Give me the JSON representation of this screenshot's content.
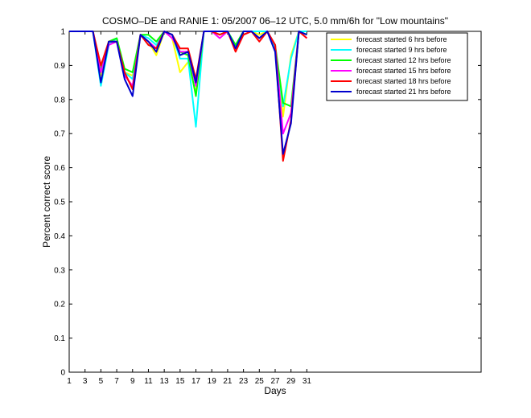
{
  "chart_data": {
    "type": "line",
    "title": "COSMO–DE and RANIE 1: 05/2007 06–12 UTC, 5.0 mm/6h for \"Low mountains\"",
    "xlabel": "Days",
    "ylabel": "Percent correct score",
    "xlim": [
      1,
      53
    ],
    "ylim": [
      0,
      1
    ],
    "xticks": [
      1,
      3,
      5,
      7,
      9,
      11,
      13,
      15,
      17,
      19,
      21,
      23,
      25,
      27,
      29,
      31
    ],
    "yticks": [
      0,
      0.1,
      0.2,
      0.3,
      0.4,
      0.5,
      0.6,
      0.7,
      0.8,
      0.9,
      1
    ],
    "ytick_labels": [
      "0",
      "0.1",
      "0.2",
      "0.3",
      "0.4",
      "0.5",
      "0.6",
      "0.7",
      "0.8",
      "0.9",
      "1"
    ],
    "legend_position": "top-right",
    "x": [
      1,
      2,
      3,
      4,
      5,
      6,
      7,
      8,
      9,
      10,
      11,
      12,
      13,
      14,
      15,
      16,
      17,
      18,
      19,
      20,
      21,
      22,
      23,
      24,
      25,
      26,
      27,
      28,
      29,
      30,
      31
    ],
    "series": [
      {
        "name": "forecast started 6 hrs before",
        "color": "#ffff00",
        "values": [
          1,
          1,
          1,
          1,
          0.87,
          0.97,
          0.97,
          0.88,
          0.87,
          0.99,
          0.97,
          0.93,
          1,
          0.98,
          0.88,
          0.91,
          0.82,
          1,
          1,
          0.99,
          1,
          0.95,
          0.99,
          1,
          0.99,
          1,
          0.96,
          0.75,
          0.93,
          1,
          0.99
        ]
      },
      {
        "name": "forecast started 9 hrs before",
        "color": "#00ffff",
        "values": [
          1,
          1,
          1,
          1,
          0.84,
          0.96,
          0.98,
          0.88,
          0.86,
          0.99,
          0.98,
          0.96,
          1,
          0.99,
          0.92,
          0.92,
          0.72,
          1,
          1,
          1,
          1,
          0.96,
          0.99,
          1,
          1,
          1,
          0.95,
          0.78,
          0.92,
          1,
          1
        ]
      },
      {
        "name": "forecast started 12 hrs before",
        "color": "#00ff00",
        "values": [
          1,
          1,
          1,
          1,
          0.89,
          0.97,
          0.98,
          0.89,
          0.88,
          0.99,
          0.99,
          0.97,
          1,
          0.99,
          0.94,
          0.93,
          0.81,
          1,
          1,
          0.99,
          1,
          0.96,
          1,
          1,
          0.98,
          1,
          0.96,
          0.79,
          0.78,
          1,
          0.99
        ]
      },
      {
        "name": "forecast started 15 hrs before",
        "color": "#ff00ff",
        "values": [
          1,
          1,
          1,
          1,
          0.88,
          0.96,
          0.97,
          0.87,
          0.84,
          0.99,
          0.97,
          0.95,
          1,
          0.98,
          0.94,
          0.94,
          0.84,
          1,
          1,
          0.98,
          1,
          0.95,
          0.99,
          1,
          0.98,
          1,
          0.96,
          0.7,
          0.76,
          1,
          0.98
        ]
      },
      {
        "name": "forecast started 18 hrs before",
        "color": "#ff0000",
        "values": [
          1,
          1,
          1,
          1,
          0.9,
          0.97,
          0.97,
          0.88,
          0.83,
          0.99,
          0.96,
          0.95,
          1,
          0.99,
          0.95,
          0.95,
          0.86,
          1,
          1,
          0.99,
          1,
          0.94,
          0.99,
          1,
          0.97,
          1,
          0.96,
          0.62,
          0.74,
          1,
          0.98
        ]
      },
      {
        "name": "forecast started 21 hrs before",
        "color": "#0000cd",
        "values": [
          1,
          1,
          1,
          1,
          0.85,
          0.97,
          0.97,
          0.86,
          0.81,
          0.99,
          0.97,
          0.94,
          1,
          0.99,
          0.93,
          0.94,
          0.85,
          1,
          1,
          1,
          1,
          0.95,
          1,
          1,
          0.98,
          1,
          0.94,
          0.64,
          0.73,
          1,
          0.99
        ]
      }
    ]
  }
}
